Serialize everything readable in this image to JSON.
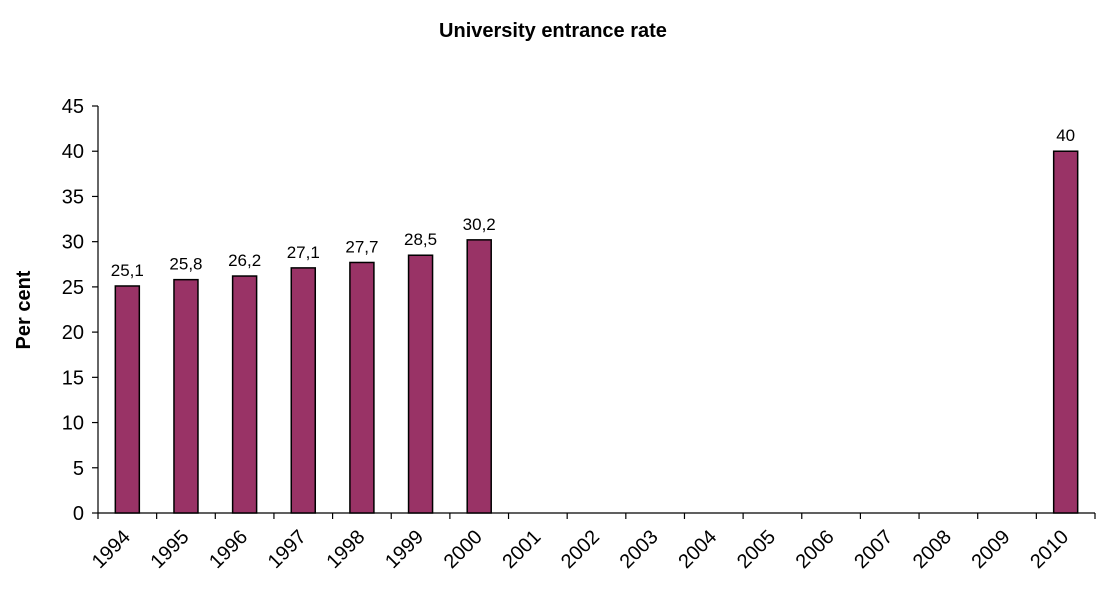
{
  "chart_data": {
    "type": "bar",
    "title": "University entrance rate",
    "xlabel": "",
    "ylabel": "Per cent",
    "categories": [
      "1994",
      "1995",
      "1996",
      "1997",
      "1998",
      "1999",
      "2000",
      "2001",
      "2002",
      "2003",
      "2004",
      "2005",
      "2006",
      "2007",
      "2008",
      "2009",
      "2010"
    ],
    "values": [
      25.1,
      25.8,
      26.2,
      27.1,
      27.7,
      28.5,
      30.2,
      null,
      null,
      null,
      null,
      null,
      null,
      null,
      null,
      null,
      40
    ],
    "data_labels": [
      "25,1",
      "25,8",
      "26,2",
      "27,1",
      "27,7",
      "28,5",
      "30,2",
      "",
      "",
      "",
      "",
      "",
      "",
      "",
      "",
      "",
      "40"
    ],
    "ylim": [
      0,
      45
    ],
    "yticks": [
      0,
      5,
      10,
      15,
      20,
      25,
      30,
      35,
      40,
      45
    ],
    "grid": false,
    "legend": "none",
    "colors": {
      "bar_fill": "#993366",
      "bar_stroke": "#000000",
      "axis": "#000000",
      "text": "#000000"
    }
  }
}
